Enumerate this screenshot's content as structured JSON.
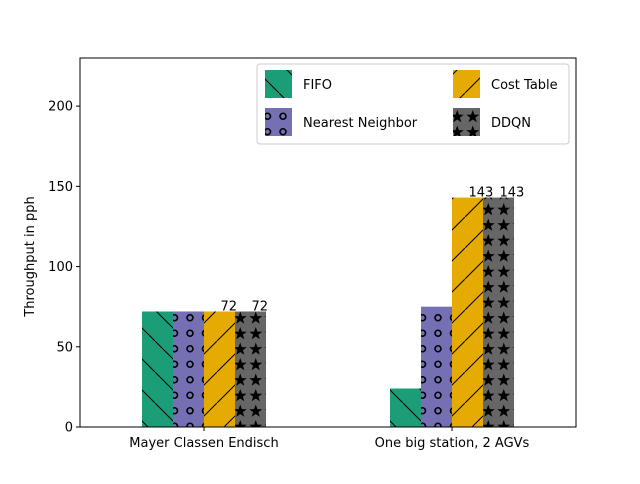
{
  "chart_data": {
    "type": "bar",
    "title": "",
    "xlabel": "",
    "ylabel": "Throughput in pph",
    "ylim": [
      0,
      230
    ],
    "yticks": [
      0,
      50,
      100,
      150,
      200
    ],
    "grid": false,
    "legend_position": "top-right",
    "categories": [
      "Mayer Classen Endisch",
      "One big station, 2 AGVs"
    ],
    "series": [
      {
        "name": "FIFO",
        "values": [
          72,
          24
        ],
        "color": "#1b9e77",
        "hatch": "diagonal-backslash"
      },
      {
        "name": "Nearest Neighbor",
        "values": [
          72,
          75
        ],
        "color": "#7570b3",
        "hatch": "circles"
      },
      {
        "name": "Cost Table",
        "values": [
          72,
          143
        ],
        "color": "#e6ab02",
        "hatch": "diagonal-slash"
      },
      {
        "name": "DDQN",
        "values": [
          72,
          143
        ],
        "color": "#666666",
        "hatch": "stars"
      }
    ],
    "data_labels": [
      {
        "series": 2,
        "category": 0,
        "text": "72"
      },
      {
        "series": 3,
        "category": 0,
        "text": "72"
      },
      {
        "series": 2,
        "category": 1,
        "text": "143"
      },
      {
        "series": 3,
        "category": 1,
        "text": "143"
      }
    ]
  }
}
